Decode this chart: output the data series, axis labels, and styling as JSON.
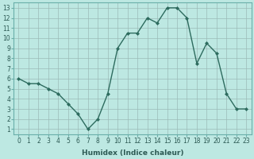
{
  "x": [
    0,
    1,
    2,
    3,
    4,
    5,
    6,
    7,
    8,
    9,
    10,
    11,
    12,
    13,
    14,
    15,
    16,
    17,
    18,
    19,
    20,
    21,
    22,
    23
  ],
  "y": [
    6,
    5.5,
    5.5,
    5,
    4.5,
    3.5,
    2.5,
    1,
    2,
    4.5,
    9,
    10.5,
    10.5,
    12,
    11.5,
    13,
    13,
    12,
    7.5,
    9.5,
    8.5,
    4.5,
    3,
    3
  ],
  "line_color": "#2d6b5e",
  "marker": "D",
  "marker_size": 2,
  "bg_color": "#bde8e2",
  "grid_color": "#9bbbb7",
  "xlabel": "Humidex (Indice chaleur)",
  "xlim": [
    -0.5,
    23.5
  ],
  "ylim": [
    0.5,
    13.5
  ],
  "xticks": [
    0,
    1,
    2,
    3,
    4,
    5,
    6,
    7,
    8,
    9,
    10,
    11,
    12,
    13,
    14,
    15,
    16,
    17,
    18,
    19,
    20,
    21,
    22,
    23
  ],
  "yticks": [
    1,
    2,
    3,
    4,
    5,
    6,
    7,
    8,
    9,
    10,
    11,
    12,
    13
  ],
  "xlabel_fontsize": 6.5,
  "tick_fontsize": 5.5,
  "line_width": 1.0
}
